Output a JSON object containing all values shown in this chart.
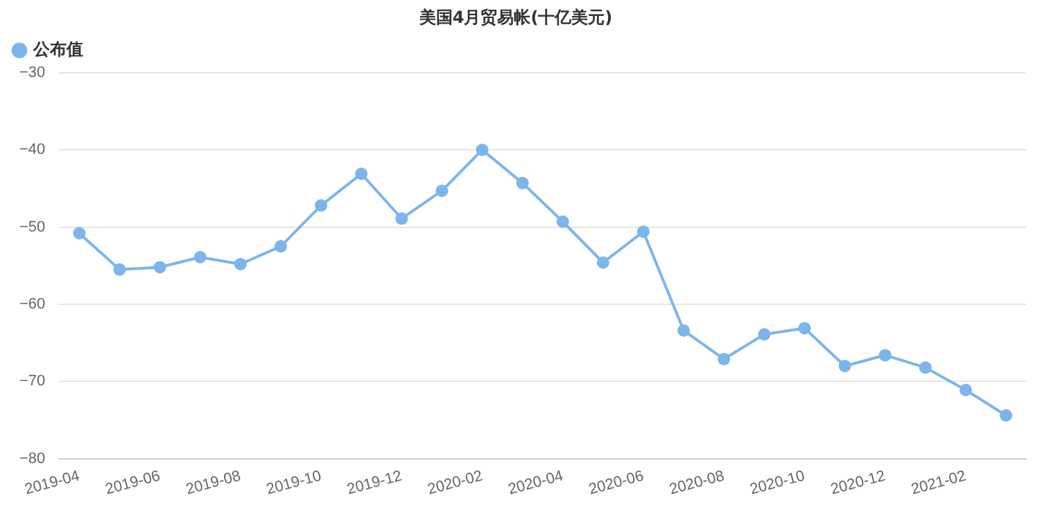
{
  "chart_data": {
    "type": "line",
    "title": "美国4月贸易帐(十亿美元)",
    "categories": [
      "2019-04",
      null,
      "2019-06",
      null,
      "2019-08",
      null,
      "2019-10",
      null,
      "2019-12",
      null,
      "2020-02",
      null,
      "2020-04",
      null,
      "2020-06",
      null,
      "2020-08",
      null,
      "2020-10",
      null,
      "2020-12",
      null,
      "2021-02",
      null
    ],
    "series": [
      {
        "name": "公布值",
        "color": "#7cb5ec",
        "values": [
          -50.8,
          -55.5,
          -55.2,
          -53.9,
          -54.8,
          -52.5,
          -47.2,
          -43.1,
          -48.9,
          -45.3,
          -40,
          -44.3,
          -49.3,
          -54.6,
          -50.6,
          -63.4,
          -67.1,
          -63.9,
          -63.1,
          -68,
          -66.6,
          -68.2,
          -71.1,
          -74.4
        ]
      }
    ],
    "ylim": [
      -80,
      -30
    ],
    "yticks": [
      -80,
      -70,
      -60,
      -50,
      -40,
      -30
    ],
    "grid": "y",
    "legend": "top left",
    "marker": "circle",
    "line_style": "solid"
  }
}
